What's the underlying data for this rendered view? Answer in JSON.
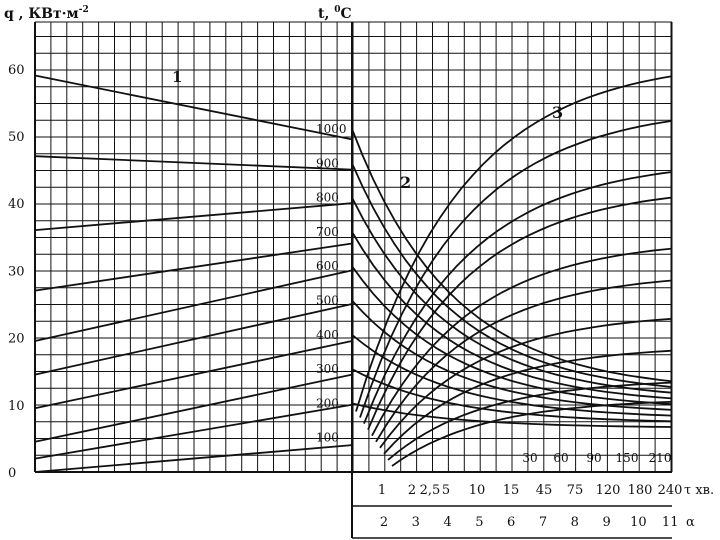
{
  "chart_data": {
    "type": "line",
    "title": "",
    "left_axis": {
      "label": "q , КВт·м",
      "label_sup": "-2",
      "ticks": [
        "0",
        "10",
        "20",
        "30",
        "40",
        "50",
        "60"
      ],
      "range": [
        0,
        65
      ]
    },
    "mid_axis": {
      "label": "t, ",
      "label_sup": "0",
      "label_unit": "C",
      "ticks": [
        "100",
        "200",
        "300",
        "400",
        "500",
        "600",
        "700",
        "800",
        "900",
        "1000"
      ]
    },
    "tau_axis": {
      "label": "τ хв.",
      "ticks": [
        "1",
        "2",
        "2,5",
        "5",
        "10",
        "15",
        "45",
        "75",
        "120",
        "180",
        "240"
      ]
    },
    "alpha_axis": {
      "label": "α",
      "ticks": [
        "2",
        "3",
        "4",
        "5",
        "6",
        "7",
        "8",
        "9",
        "10",
        "11"
      ]
    },
    "top_tau_ticks": [
      "30",
      "60",
      "90",
      "150",
      "210"
    ],
    "curve_labels": [
      "1",
      "2",
      "3"
    ],
    "family1": [
      {
        "name": "1",
        "values": [
          59,
          49.5
        ]
      },
      {
        "name": "",
        "values": [
          47,
          45
        ]
      },
      {
        "name": "",
        "values": [
          36,
          40
        ]
      },
      {
        "name": "",
        "values": [
          27,
          34
        ]
      },
      {
        "name": "",
        "values": [
          19.5,
          30
        ]
      },
      {
        "name": "",
        "values": [
          14.5,
          25
        ]
      },
      {
        "name": "",
        "values": [
          9.5,
          19.5
        ]
      },
      {
        "name": "",
        "values": [
          4.5,
          14.5
        ]
      },
      {
        "name": "",
        "values": [
          2,
          10
        ]
      },
      {
        "name": "",
        "values": [
          0,
          4
        ]
      }
    ]
  }
}
